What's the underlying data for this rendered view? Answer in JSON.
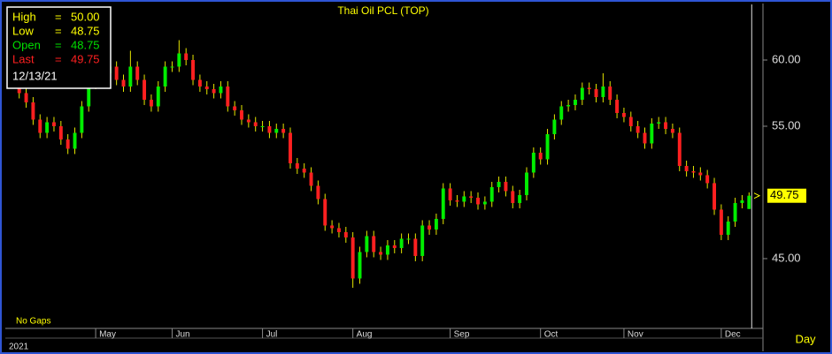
{
  "chart_data": {
    "type": "candlestick",
    "title": "Thai Oil PCL (TOP)",
    "year": "2021",
    "interval": "Day",
    "gap_mode": "No Gaps",
    "info": {
      "equals": "=",
      "rows": [
        {
          "label": "High",
          "value": "50.00",
          "color": "#ffff00"
        },
        {
          "label": "Low",
          "value": "48.75",
          "color": "#ffff00"
        },
        {
          "label": "Open",
          "value": "48.75",
          "color": "#00e000"
        },
        {
          "label": "Last",
          "value": "49.75",
          "color": "#ff2020"
        }
      ],
      "date": "12/13/21"
    },
    "last_label": "49.75",
    "up_color": "#00ee00",
    "down_color": "#ff2020",
    "open": [
      58.0,
      57.5,
      56.8,
      55.5,
      54.5,
      55.3,
      55.0,
      54.0,
      53.3,
      54.5,
      56.5,
      58.2,
      58.5,
      59.0,
      59.5,
      58.5,
      58.0,
      59.5,
      58.5,
      57.0,
      56.5,
      58.0,
      59.5,
      59.5,
      60.5,
      60.0,
      58.5,
      58.0,
      57.8,
      57.5,
      58.0,
      56.5,
      56.2,
      55.5,
      55.3,
      55.0,
      55.0,
      54.5,
      54.8,
      54.5,
      52.2,
      51.8,
      51.5,
      50.5,
      49.5,
      47.5,
      47.3,
      47.0,
      46.6,
      43.5,
      45.5,
      46.7,
      45.5,
      45.3,
      46.0,
      45.8,
      46.5,
      46.5,
      45.2,
      47.5,
      47.2,
      48.0,
      50.3,
      49.4,
      49.3,
      49.7,
      49.6,
      49.1,
      49.3,
      50.4,
      50.8,
      50.1,
      49.2,
      49.8,
      51.5,
      53.0,
      52.5,
      54.4,
      55.5,
      56.5,
      56.6,
      57.0,
      57.9,
      57.8,
      57.2,
      58.0,
      57.0,
      56.0,
      55.7,
      55.0,
      54.5,
      53.7,
      55.2,
      55.3,
      54.8,
      54.5,
      52.0,
      51.6,
      51.5,
      51.3,
      50.7,
      48.7,
      46.8,
      47.8,
      49.2,
      48.75
    ],
    "high": [
      58.4,
      57.9,
      57.2,
      55.9,
      55.7,
      55.7,
      55.4,
      54.4,
      54.9,
      56.9,
      58.6,
      58.9,
      59.4,
      59.9,
      59.9,
      58.9,
      60.7,
      59.9,
      58.9,
      57.4,
      58.4,
      59.9,
      59.9,
      61.5,
      60.9,
      60.4,
      58.9,
      58.4,
      58.2,
      58.4,
      58.4,
      56.9,
      56.6,
      55.9,
      55.7,
      55.4,
      55.4,
      55.2,
      55.2,
      54.9,
      52.6,
      52.2,
      51.9,
      50.9,
      49.9,
      47.9,
      47.7,
      47.4,
      47.0,
      45.9,
      47.1,
      47.1,
      45.9,
      46.4,
      46.4,
      46.9,
      46.9,
      46.9,
      47.9,
      47.9,
      48.4,
      50.7,
      50.7,
      49.8,
      50.1,
      50.1,
      50.0,
      49.7,
      50.8,
      51.2,
      51.2,
      50.5,
      50.2,
      51.9,
      53.4,
      53.4,
      54.8,
      55.9,
      56.9,
      57.0,
      57.4,
      58.3,
      58.3,
      58.2,
      59.0,
      58.4,
      57.4,
      56.4,
      56.1,
      55.4,
      54.9,
      55.6,
      55.7,
      55.7,
      55.2,
      54.9,
      52.4,
      52.0,
      51.9,
      51.7,
      51.1,
      49.1,
      48.2,
      49.6,
      49.8,
      50.0
    ],
    "low": [
      57.1,
      56.4,
      55.1,
      54.1,
      54.1,
      54.6,
      53.6,
      52.9,
      52.9,
      54.1,
      56.1,
      57.8,
      58.1,
      58.6,
      58.1,
      57.6,
      57.6,
      58.1,
      56.6,
      56.1,
      56.1,
      57.6,
      59.1,
      59.1,
      59.6,
      58.1,
      57.6,
      57.4,
      57.1,
      57.1,
      56.1,
      55.8,
      55.1,
      54.9,
      54.6,
      54.6,
      54.1,
      54.1,
      54.1,
      51.8,
      51.4,
      51.1,
      50.1,
      49.1,
      47.1,
      46.9,
      46.6,
      46.2,
      42.8,
      43.1,
      45.1,
      45.1,
      44.9,
      44.9,
      45.4,
      45.4,
      46.1,
      44.8,
      44.8,
      46.8,
      46.8,
      47.6,
      49.0,
      48.9,
      48.9,
      49.2,
      48.7,
      48.7,
      48.9,
      50.0,
      49.7,
      48.8,
      48.8,
      49.4,
      51.1,
      52.1,
      52.1,
      54.0,
      55.1,
      56.1,
      56.2,
      56.6,
      57.4,
      56.8,
      56.8,
      56.6,
      55.6,
      55.3,
      54.6,
      54.1,
      53.3,
      53.3,
      54.8,
      54.4,
      54.1,
      51.6,
      51.2,
      51.1,
      50.9,
      50.3,
      48.3,
      46.4,
      46.4,
      47.4,
      48.8,
      48.75
    ],
    "close": [
      57.5,
      56.8,
      55.5,
      54.5,
      55.3,
      55.0,
      54.0,
      53.3,
      54.5,
      56.5,
      58.2,
      58.5,
      59.0,
      59.5,
      58.5,
      58.0,
      59.5,
      58.5,
      57.0,
      56.5,
      58.0,
      59.5,
      59.5,
      60.5,
      60.0,
      58.5,
      58.0,
      57.8,
      57.5,
      58.0,
      56.5,
      56.2,
      55.5,
      55.3,
      55.0,
      55.0,
      54.5,
      54.8,
      54.5,
      52.2,
      51.8,
      51.5,
      50.5,
      49.5,
      47.5,
      47.3,
      47.0,
      46.6,
      43.5,
      45.5,
      46.7,
      45.5,
      45.3,
      46.0,
      45.8,
      46.5,
      46.5,
      45.2,
      47.5,
      47.2,
      48.0,
      50.3,
      49.4,
      49.3,
      49.7,
      49.6,
      49.1,
      49.3,
      50.4,
      50.8,
      50.1,
      49.2,
      49.8,
      51.5,
      53.0,
      52.5,
      54.4,
      55.5,
      56.5,
      56.6,
      57.0,
      57.9,
      57.8,
      57.2,
      58.0,
      57.0,
      56.0,
      55.7,
      55.0,
      54.5,
      53.7,
      55.2,
      55.3,
      54.8,
      54.5,
      52.0,
      51.6,
      51.5,
      51.3,
      50.7,
      48.7,
      46.8,
      47.8,
      49.2,
      49.4,
      49.75
    ],
    "xlim": [
      -2,
      107
    ],
    "xticks": [
      {
        "value": 11,
        "label": "May"
      },
      {
        "value": 22,
        "label": "Jun"
      },
      {
        "value": 35,
        "label": "Jul"
      },
      {
        "value": 48,
        "label": "Aug"
      },
      {
        "value": 62,
        "label": "Sep"
      },
      {
        "value": 75,
        "label": "Oct"
      },
      {
        "value": 87,
        "label": "Nov"
      },
      {
        "value": 101,
        "label": "Dec"
      }
    ],
    "ylim": [
      39.73,
      64.2
    ],
    "yticks": [
      {
        "value": 45,
        "label": "45.00"
      },
      {
        "value": 55,
        "label": "55.00"
      },
      {
        "value": 60,
        "label": "60.00"
      }
    ]
  }
}
